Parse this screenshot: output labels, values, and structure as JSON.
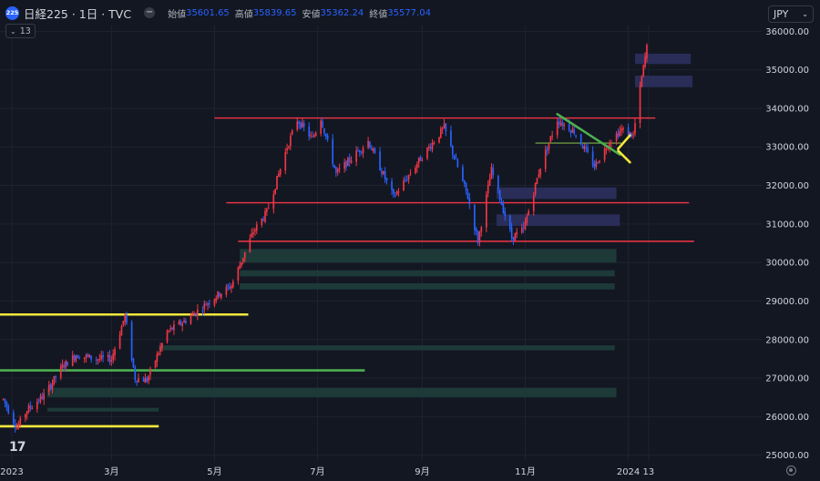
{
  "header": {
    "symbol_badge": "225",
    "symbol_title": "日経225 · 1日 · TVC",
    "collapse_symbol": "−",
    "ohlc": [
      {
        "label": "始値",
        "value": "35601.65"
      },
      {
        "label": "高値",
        "value": "35839.65"
      },
      {
        "label": "安値",
        "value": "35362.24"
      },
      {
        "label": "終値",
        "value": "35577.04"
      }
    ]
  },
  "indicator": {
    "chevron": "⌄",
    "value": "13"
  },
  "currency": {
    "label": "JPY",
    "chevron": "⌄"
  },
  "logo_text": "17",
  "colors": {
    "background": "#131722",
    "up": "#f23645",
    "down": "#2962ff",
    "red_line": "#f23645",
    "yellow_line": "#f5e83c",
    "green_line": "#4caf50",
    "supply_zone": "#2a2e5c",
    "demand_zone": "#1e3b3a"
  },
  "chart_data": {
    "type": "candlestick",
    "y_ticks": [
      {
        "value": 25000,
        "label": "25000.00"
      },
      {
        "value": 26000,
        "label": "26000.00"
      },
      {
        "value": 27000,
        "label": "27000.00"
      },
      {
        "value": 28000,
        "label": "28000.00"
      },
      {
        "value": 29000,
        "label": "29000.00"
      },
      {
        "value": 30000,
        "label": "30000.00"
      },
      {
        "value": 31000,
        "label": "31000.00"
      },
      {
        "value": 32000,
        "label": "32000.00"
      },
      {
        "value": 33000,
        "label": "33000.00"
      },
      {
        "value": 34000,
        "label": "34000.00"
      },
      {
        "value": 35000,
        "label": "35000.00"
      },
      {
        "value": 36000,
        "label": "36000.00"
      }
    ],
    "ylim": [
      24850,
      36150
    ],
    "x_ticks": [
      {
        "date": "2023-01-01",
        "label": "2023"
      },
      {
        "date": "2023-03-01",
        "label": "3月"
      },
      {
        "date": "2023-05-01",
        "label": "5月"
      },
      {
        "date": "2023-07-01",
        "label": "7月"
      },
      {
        "date": "2023-09-01",
        "label": "9月"
      },
      {
        "date": "2023-11-01",
        "label": "11月"
      },
      {
        "date": "2024-01-01",
        "label": "2024"
      },
      {
        "date": "2024-01-13",
        "label": "13"
      }
    ],
    "xlim": [
      "2022-12-25",
      "2024-03-20"
    ],
    "price_path": [
      [
        "2022-12-27",
        26450
      ],
      [
        "2023-01-04",
        25716
      ],
      [
        "2023-01-10",
        26170
      ],
      [
        "2023-01-20",
        26550
      ],
      [
        "2023-01-31",
        27300
      ],
      [
        "2023-02-08",
        27600
      ],
      [
        "2023-02-20",
        27500
      ],
      [
        "2023-03-01",
        27500
      ],
      [
        "2023-03-09",
        28620
      ],
      [
        "2023-03-15",
        27000
      ],
      [
        "2023-03-22",
        26950
      ],
      [
        "2023-04-03",
        28200
      ],
      [
        "2023-04-14",
        28500
      ],
      [
        "2023-05-01",
        29100
      ],
      [
        "2023-05-11",
        29400
      ],
      [
        "2023-05-24",
        30800
      ],
      [
        "2023-06-01",
        31300
      ],
      [
        "2023-06-13",
        33000
      ],
      [
        "2023-06-19",
        33700
      ],
      [
        "2023-06-28",
        33200
      ],
      [
        "2023-07-03",
        33750
      ],
      [
        "2023-07-12",
        32300
      ],
      [
        "2023-07-31",
        33150
      ],
      [
        "2023-08-15",
        31700
      ],
      [
        "2023-08-31",
        32700
      ],
      [
        "2023-09-14",
        33500
      ],
      [
        "2023-09-28",
        31700
      ],
      [
        "2023-10-04",
        30550
      ],
      [
        "2023-10-12",
        32400
      ],
      [
        "2023-10-24",
        30650
      ],
      [
        "2023-10-31",
        30850
      ],
      [
        "2023-11-10",
        32500
      ],
      [
        "2023-11-20",
        33700
      ],
      [
        "2023-11-30",
        33400
      ],
      [
        "2023-12-12",
        32500
      ],
      [
        "2023-12-21",
        33150
      ],
      [
        "2023-12-28",
        33450
      ],
      [
        "2024-01-04",
        33300
      ],
      [
        "2024-01-09",
        34800
      ],
      [
        "2024-01-12",
        35577
      ]
    ],
    "annotations": {
      "red_lines": [
        {
          "y": 33750,
          "x0": "2023-05-01",
          "x1": "2024-01-17"
        },
        {
          "y": 31550,
          "x0": "2023-05-08",
          "x1": "2024-02-06"
        },
        {
          "y": 30550,
          "x0": "2023-05-15",
          "x1": "2024-02-09"
        }
      ],
      "yellow_lines": [
        {
          "y": 28650,
          "x0": "2022-12-25",
          "x1": "2023-05-21"
        },
        {
          "y": 25750,
          "x0": "2022-12-25",
          "x1": "2023-03-29"
        }
      ],
      "green_lines": [
        {
          "y": 27200,
          "x0": "2022-12-25",
          "x1": "2023-07-29"
        }
      ],
      "trend_lines": [
        {
          "color": "green",
          "x0": "2023-11-20",
          "y0": 33850,
          "x1": "2023-12-27",
          "y1": 32800
        },
        {
          "color": "yellow",
          "x0": "2023-12-26",
          "y0": 32950,
          "x1": "2024-01-02",
          "y1": 33300
        },
        {
          "color": "yellow",
          "x0": "2023-12-26",
          "y0": 32900,
          "x1": "2024-01-02",
          "y1": 32600
        }
      ],
      "thin_green_line": {
        "y": 33100,
        "x0": "2023-11-07",
        "x1": "2023-12-28"
      },
      "supply_zones": [
        {
          "x0": "2024-01-05",
          "x1": "2024-02-07",
          "y0": 35150,
          "y1": 35420
        },
        {
          "x0": "2024-01-05",
          "x1": "2024-02-08",
          "y0": 34550,
          "y1": 34850
        },
        {
          "x0": "2023-10-15",
          "x1": "2023-12-25",
          "y0": 31650,
          "y1": 31950
        },
        {
          "x0": "2023-10-15",
          "x1": "2023-12-27",
          "y0": 30950,
          "y1": 31250
        }
      ],
      "demand_zones": [
        {
          "x0": "2023-05-16",
          "x1": "2023-12-25",
          "y0": 30000,
          "y1": 30350
        },
        {
          "x0": "2023-05-16",
          "x1": "2023-12-24",
          "y0": 29640,
          "y1": 29800
        },
        {
          "x0": "2023-05-16",
          "x1": "2023-12-24",
          "y0": 29300,
          "y1": 29460
        },
        {
          "x0": "2023-03-29",
          "x1": "2023-12-24",
          "y0": 27720,
          "y1": 27850
        },
        {
          "x0": "2023-01-22",
          "x1": "2023-12-25",
          "y0": 26500,
          "y1": 26750
        },
        {
          "x0": "2023-01-22",
          "x1": "2023-03-29",
          "y0": 26130,
          "y1": 26230
        }
      ]
    }
  }
}
